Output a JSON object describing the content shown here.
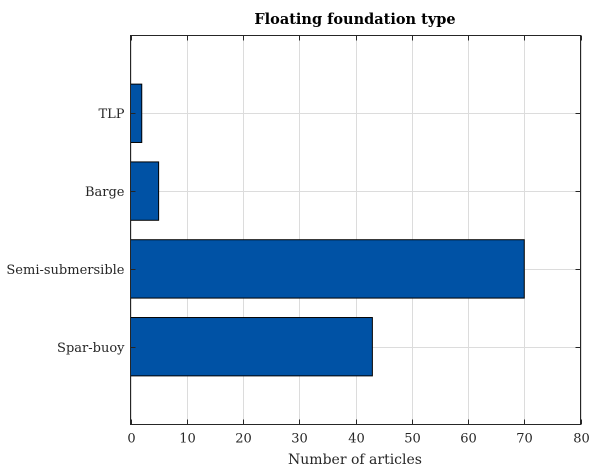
{
  "chart_data": {
    "type": "bar",
    "orientation": "horizontal",
    "title": "Floating foundation type",
    "xlabel": "Number of articles",
    "ylabel": "",
    "categories": [
      "Spar-buoy",
      "Semi-submersible",
      "Barge",
      "TLP"
    ],
    "values": [
      43,
      70,
      5,
      2
    ],
    "xlim": [
      0,
      80
    ],
    "xticks": [
      0,
      10,
      20,
      30,
      40,
      50,
      60,
      70,
      80
    ],
    "grid": true,
    "bar_color": "#0052a5",
    "legend": "none"
  }
}
